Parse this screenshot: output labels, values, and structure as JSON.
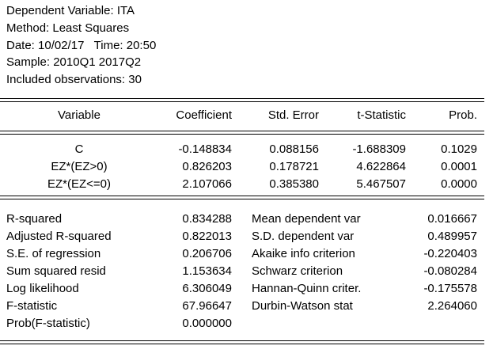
{
  "header": {
    "lines": [
      "Dependent Variable: ITA",
      "Method: Least Squares",
      "Date: 10/02/17   Time: 20:50",
      "Sample: 2010Q1 2017Q2",
      "Included observations: 30"
    ]
  },
  "table": {
    "columns": [
      "Variable",
      "Coefficient",
      "Std. Error",
      "t-Statistic",
      "Prob."
    ],
    "rows": [
      [
        "C",
        "-0.148834",
        "0.088156",
        "-1.688309",
        "0.1029"
      ],
      [
        "EZ*(EZ>0)",
        "0.826203",
        "0.178721",
        "4.622864",
        "0.0001"
      ],
      [
        "EZ*(EZ<=0)",
        "2.107066",
        "0.385380",
        "5.467507",
        "0.0000"
      ]
    ]
  },
  "stats": {
    "rows": [
      [
        "R-squared",
        "0.834288",
        "Mean dependent var",
        "0.016667"
      ],
      [
        "Adjusted R-squared",
        "0.822013",
        "S.D. dependent var",
        "0.489957"
      ],
      [
        "S.E. of regression",
        "0.206706",
        "Akaike info criterion",
        "-0.220403"
      ],
      [
        "Sum squared resid",
        "1.153634",
        "Schwarz criterion",
        "-0.080284"
      ],
      [
        "Log likelihood",
        "6.306049",
        "Hannan-Quinn criter.",
        "-0.175578"
      ],
      [
        "F-statistic",
        "67.96647",
        "Durbin-Watson stat",
        "2.264060"
      ],
      [
        "Prob(F-statistic)",
        "0.000000"
      ]
    ]
  }
}
